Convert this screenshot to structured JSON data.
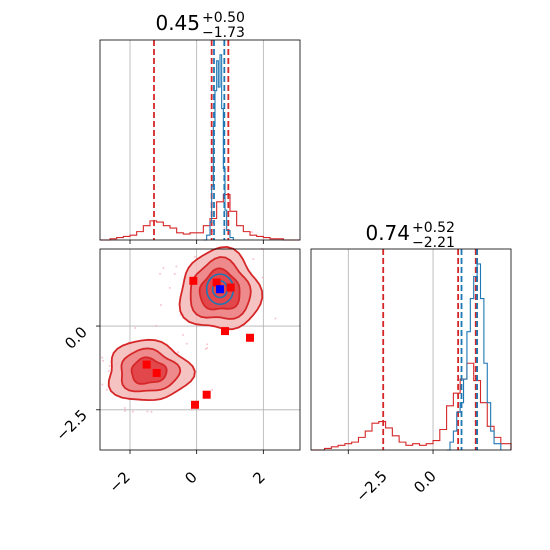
{
  "chart_data": {
    "type": "corner",
    "colors": {
      "primary": "#d62728",
      "secondary": "#1f77b4",
      "marker": "#ff0000",
      "marker_alt": "#0000ff",
      "grid": "#b0b0b0"
    },
    "panels": [
      {
        "id": "hist_param1",
        "type": "histogram",
        "title": {
          "median": "0.45",
          "plus": "+0.50",
          "minus": "−1.73"
        },
        "xlim": [
          -2.9,
          3.1
        ],
        "grid_x": [
          -2,
          0,
          2
        ],
        "series": [
          {
            "name": "",
            "color": "#d62728",
            "bins": [
              [
                -2.9,
                0
              ],
              [
                -2.6,
                1
              ],
              [
                -2.4,
                2
              ],
              [
                -2.2,
                3
              ],
              [
                -2.0,
                4
              ],
              [
                -1.8,
                7
              ],
              [
                -1.6,
                12
              ],
              [
                -1.4,
                16
              ],
              [
                -1.2,
                15
              ],
              [
                -1.0,
                12
              ],
              [
                -0.8,
                10
              ],
              [
                -0.6,
                6
              ],
              [
                -0.4,
                5
              ],
              [
                -0.2,
                6
              ],
              [
                0.0,
                6
              ],
              [
                0.2,
                12
              ],
              [
                0.4,
                18
              ],
              [
                0.6,
                32
              ],
              [
                0.8,
                38
              ],
              [
                1.0,
                24
              ],
              [
                1.2,
                12
              ],
              [
                1.4,
                7
              ],
              [
                1.6,
                4
              ],
              [
                1.8,
                3
              ],
              [
                2.0,
                2
              ],
              [
                2.2,
                1
              ],
              [
                2.4,
                1
              ],
              [
                2.6,
                0
              ],
              [
                3.1,
                0
              ]
            ],
            "quantile_lines": [
              -1.28,
              0.45,
              0.95
            ]
          },
          {
            "name": "",
            "color": "#1f77b4",
            "bins": [
              [
                0.2,
                0
              ],
              [
                0.3,
                4
              ],
              [
                0.4,
                15
              ],
              [
                0.45,
                45
              ],
              [
                0.5,
                95
              ],
              [
                0.55,
                125
              ],
              [
                0.6,
                150
              ],
              [
                0.65,
                128
              ],
              [
                0.7,
                155
              ],
              [
                0.75,
                110
              ],
              [
                0.8,
                60
              ],
              [
                0.85,
                25
              ],
              [
                0.9,
                8
              ],
              [
                1.0,
                2
              ],
              [
                1.1,
                0
              ]
            ],
            "quantile_lines": [
              0.52,
              0.83
            ]
          }
        ]
      },
      {
        "id": "hist_param2",
        "type": "histogram",
        "title": {
          "median": "0.74",
          "plus": "+0.52",
          "minus": "−2.21"
        },
        "xlim": [
          -3.6,
          2.3
        ],
        "grid_x": [
          -2.5,
          0.0
        ],
        "tick_labels": [
          "−2.5",
          "0.0"
        ],
        "series": [
          {
            "name": "",
            "color": "#d62728",
            "bins": [
              [
                -3.6,
                0
              ],
              [
                -3.2,
                1
              ],
              [
                -3.0,
                2
              ],
              [
                -2.8,
                3
              ],
              [
                -2.6,
                4
              ],
              [
                -2.4,
                5
              ],
              [
                -2.2,
                8
              ],
              [
                -2.0,
                12
              ],
              [
                -1.8,
                17
              ],
              [
                -1.6,
                18
              ],
              [
                -1.4,
                14
              ],
              [
                -1.2,
                9
              ],
              [
                -1.0,
                5
              ],
              [
                -0.8,
                3
              ],
              [
                -0.6,
                4
              ],
              [
                -0.4,
                3
              ],
              [
                -0.2,
                4
              ],
              [
                0.0,
                6
              ],
              [
                0.2,
                13
              ],
              [
                0.4,
                28
              ],
              [
                0.6,
                36
              ],
              [
                0.8,
                45
              ],
              [
                1.0,
                55
              ],
              [
                1.2,
                44
              ],
              [
                1.4,
                30
              ],
              [
                1.6,
                15
              ],
              [
                1.8,
                8
              ],
              [
                2.0,
                4
              ],
              [
                2.3,
                2
              ]
            ],
            "quantile_lines": [
              -1.47,
              0.74,
              1.26
            ]
          },
          {
            "name": "",
            "color": "#1f77b4",
            "bins": [
              [
                0.4,
                0
              ],
              [
                0.5,
                5
              ],
              [
                0.6,
                12
              ],
              [
                0.7,
                24
              ],
              [
                0.8,
                30
              ],
              [
                0.9,
                45
              ],
              [
                1.0,
                75
              ],
              [
                1.1,
                96
              ],
              [
                1.2,
                110
              ],
              [
                1.3,
                118
              ],
              [
                1.4,
                96
              ],
              [
                1.5,
                55
              ],
              [
                1.6,
                30
              ],
              [
                1.7,
                12
              ],
              [
                1.8,
                4
              ],
              [
                2.0,
                0
              ]
            ],
            "quantile_lines": [
              0.84,
              1.3
            ]
          }
        ]
      },
      {
        "id": "joint_param1_param2",
        "type": "scatter_contour",
        "xlim": [
          -2.9,
          3.1
        ],
        "ylim": [
          -3.7,
          2.3
        ],
        "grid_x": [
          -2,
          0,
          2
        ],
        "grid_y": [
          0.0,
          -2.5
        ],
        "x_tick_labels": [
          "−2",
          "0",
          "2"
        ],
        "y_tick_labels": [
          "0.0",
          "−2.5"
        ],
        "contour_clusters": [
          {
            "name": "",
            "center": [
              0.7,
              1.05
            ],
            "rx": 1.2,
            "ry": 1.2,
            "levels": [
              1.0,
              0.75,
              0.5
            ]
          },
          {
            "name": "",
            "center": [
              -1.45,
              -1.35
            ],
            "rx": 1.25,
            "ry": 0.9,
            "levels": [
              1.0,
              0.7,
              0.42
            ]
          }
        ],
        "inner_series": {
          "name": "",
          "center": [
            0.7,
            1.1
          ],
          "rx": 0.4,
          "ry": 0.45
        },
        "markers_red": [
          [
            -0.1,
            1.35
          ],
          [
            0.6,
            1.3
          ],
          [
            1.02,
            1.15
          ],
          [
            0.85,
            -0.15
          ],
          [
            1.6,
            -0.35
          ],
          [
            -1.5,
            -1.15
          ],
          [
            -1.2,
            -1.4
          ],
          [
            0.3,
            -2.05
          ],
          [
            -0.05,
            -2.35
          ]
        ],
        "markers_blue": [
          [
            0.7,
            1.1
          ]
        ]
      }
    ]
  }
}
